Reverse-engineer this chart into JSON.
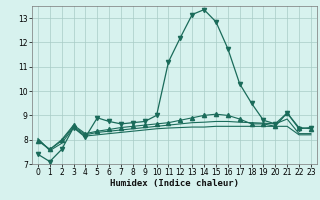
{
  "xlabel": "Humidex (Indice chaleur)",
  "bg_color": "#d7f2ee",
  "grid_color": "#a8ccc6",
  "line_color": "#1a6b5a",
  "xlim": [
    -0.5,
    23.5
  ],
  "ylim": [
    7,
    13.5
  ],
  "yticks": [
    7,
    8,
    9,
    10,
    11,
    12,
    13
  ],
  "xticks": [
    0,
    1,
    2,
    3,
    4,
    5,
    6,
    7,
    8,
    9,
    10,
    11,
    12,
    13,
    14,
    15,
    16,
    17,
    18,
    19,
    20,
    21,
    22,
    23
  ],
  "series": [
    [
      7.4,
      7.1,
      7.6,
      8.5,
      8.1,
      8.9,
      8.75,
      8.65,
      8.7,
      8.75,
      9.0,
      11.2,
      12.2,
      13.15,
      13.35,
      12.85,
      11.75,
      10.3,
      9.5,
      8.8,
      8.65,
      9.1,
      8.45,
      8.5
    ],
    [
      8.05,
      7.55,
      7.85,
      8.5,
      8.15,
      8.2,
      8.25,
      8.3,
      8.35,
      8.4,
      8.45,
      8.48,
      8.5,
      8.52,
      8.52,
      8.55,
      8.55,
      8.55,
      8.55,
      8.55,
      8.55,
      8.55,
      8.2,
      8.2
    ],
    [
      8.0,
      7.6,
      7.95,
      8.55,
      8.2,
      8.3,
      8.35,
      8.4,
      8.45,
      8.5,
      8.55,
      8.6,
      8.65,
      8.7,
      8.72,
      8.75,
      8.75,
      8.72,
      8.7,
      8.68,
      8.65,
      8.85,
      8.25,
      8.25
    ],
    [
      7.95,
      7.6,
      8.0,
      8.6,
      8.25,
      8.35,
      8.42,
      8.5,
      8.55,
      8.6,
      8.65,
      8.7,
      8.8,
      8.9,
      9.0,
      9.05,
      9.0,
      8.85,
      8.65,
      8.65,
      8.55,
      9.1,
      8.5,
      8.45
    ]
  ],
  "markers": [
    "v",
    null,
    null,
    "^"
  ],
  "marker_sizes": [
    3,
    0,
    0,
    3
  ],
  "linewidths": [
    0.9,
    0.8,
    0.8,
    0.8
  ],
  "xlabel_fontsize": 6.5,
  "tick_fontsize": 5.5
}
